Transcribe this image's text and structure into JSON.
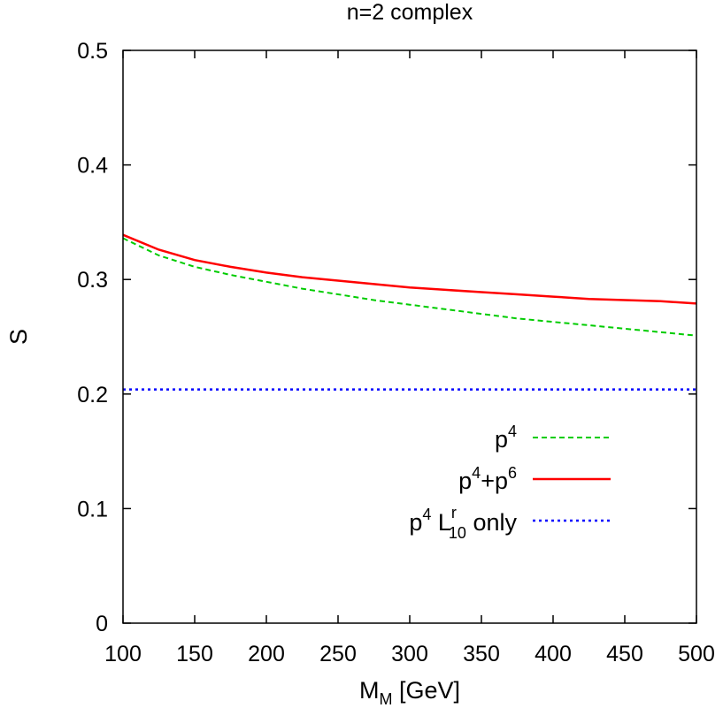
{
  "chart_data": {
    "type": "line",
    "title": "n=2 complex",
    "xlabel": {
      "main": "M",
      "sub": "M",
      "rest": " [GeV]"
    },
    "ylabel": "S",
    "xlim": [
      100,
      500
    ],
    "ylim": [
      0,
      0.5
    ],
    "x_ticks": [
      "100",
      "150",
      "200",
      "250",
      "300",
      "350",
      "400",
      "450",
      "500"
    ],
    "y_ticks": [
      "0",
      "0.1",
      "0.2",
      "0.3",
      "0.4",
      "0.5"
    ],
    "grid": false,
    "legend_position": "lower-right",
    "series": [
      {
        "name": "p4",
        "legend": {
          "base": "p",
          "sup": "4"
        },
        "color": "#00cc00",
        "style": "dashed",
        "x": [
          100,
          125,
          150,
          175,
          200,
          225,
          250,
          275,
          300,
          325,
          350,
          375,
          400,
          425,
          450,
          475,
          500
        ],
        "y": [
          0.336,
          0.321,
          0.311,
          0.304,
          0.298,
          0.292,
          0.287,
          0.282,
          0.278,
          0.274,
          0.27,
          0.266,
          0.263,
          0.26,
          0.257,
          0.254,
          0.251
        ]
      },
      {
        "name": "p4+p6",
        "legend": {
          "base": "p",
          "sup": "4",
          "mid": "+p",
          "sup2": "6"
        },
        "color": "#ff0000",
        "style": "solid",
        "x": [
          100,
          125,
          150,
          175,
          200,
          225,
          250,
          275,
          300,
          325,
          350,
          375,
          400,
          425,
          450,
          475,
          500
        ],
        "y": [
          0.339,
          0.326,
          0.317,
          0.311,
          0.306,
          0.302,
          0.299,
          0.296,
          0.293,
          0.291,
          0.289,
          0.287,
          0.285,
          0.283,
          0.282,
          0.281,
          0.279
        ]
      },
      {
        "name": "p4 L10r only",
        "legend": {
          "base": "p",
          "sup": "4",
          "mid": " L",
          "sup2": "r",
          "sub": "10",
          "tail": " only"
        },
        "color": "#0000ff",
        "style": "dotted",
        "x": [
          100,
          500
        ],
        "y": [
          0.204,
          0.204
        ]
      }
    ]
  }
}
